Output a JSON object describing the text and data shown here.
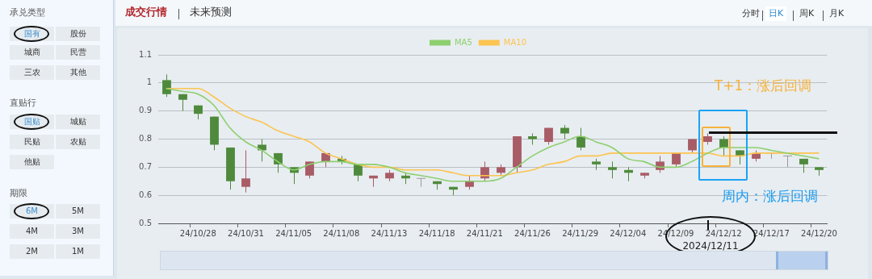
{
  "chart_data": [
    {
      "type": "candlestick",
      "categories": [
        null,
        null,
        "24/10/28",
        null,
        null,
        "24/10/31",
        null,
        null,
        "24/11/05",
        null,
        null,
        "24/11/08",
        null,
        null,
        "24/11/13",
        null,
        null,
        "24/11/18",
        null,
        null,
        "24/11/21",
        null,
        null,
        "24/11/26",
        null,
        null,
        "24/11/29",
        null,
        null,
        "24/12/04",
        null,
        null,
        "24/12/09",
        null,
        null,
        "24/12/12",
        null,
        null,
        "24/12/17",
        null,
        null,
        "24/12/20"
      ],
      "ohlc": [
        [
          1.01,
          1.03,
          0.95,
          0.96
        ],
        [
          0.96,
          0.96,
          0.9,
          0.94
        ],
        [
          0.92,
          0.92,
          0.87,
          0.89
        ],
        [
          0.88,
          0.88,
          0.76,
          0.78
        ],
        [
          0.77,
          0.77,
          0.62,
          0.65
        ],
        [
          0.63,
          0.76,
          0.61,
          0.66
        ],
        [
          0.78,
          0.8,
          0.72,
          0.76
        ],
        [
          0.75,
          0.75,
          0.68,
          0.71
        ],
        [
          0.7,
          0.7,
          0.64,
          0.68
        ],
        [
          0.67,
          0.72,
          0.66,
          0.72
        ],
        [
          0.72,
          0.75,
          0.7,
          0.75
        ],
        [
          0.73,
          0.74,
          0.71,
          0.72
        ],
        [
          0.71,
          0.71,
          0.65,
          0.67
        ],
        [
          0.66,
          0.67,
          0.63,
          0.67
        ],
        [
          0.66,
          0.69,
          0.65,
          0.68
        ],
        [
          0.67,
          0.68,
          0.64,
          0.66
        ],
        [
          0.66,
          0.66,
          0.63,
          0.66
        ],
        [
          0.65,
          0.65,
          0.62,
          0.64
        ],
        [
          0.63,
          0.63,
          0.6,
          0.62
        ],
        [
          0.63,
          0.67,
          0.62,
          0.65
        ],
        [
          0.66,
          0.72,
          0.65,
          0.7
        ],
        [
          0.68,
          0.71,
          0.67,
          0.7
        ],
        [
          0.7,
          0.81,
          0.68,
          0.81
        ],
        [
          0.81,
          0.82,
          0.78,
          0.8
        ],
        [
          0.79,
          0.84,
          0.78,
          0.84
        ],
        [
          0.84,
          0.85,
          0.8,
          0.82
        ],
        [
          0.81,
          0.84,
          0.76,
          0.77
        ],
        [
          0.72,
          0.73,
          0.69,
          0.71
        ],
        [
          0.7,
          0.72,
          0.66,
          0.69
        ],
        [
          0.69,
          0.7,
          0.65,
          0.68
        ],
        [
          0.67,
          0.68,
          0.66,
          0.68
        ],
        [
          0.69,
          0.74,
          0.68,
          0.72
        ],
        [
          0.71,
          0.75,
          0.7,
          0.75
        ],
        [
          0.76,
          0.8,
          0.75,
          0.8
        ],
        [
          0.79,
          0.82,
          0.78,
          0.81
        ],
        [
          0.8,
          0.81,
          0.74,
          0.77
        ],
        [
          0.76,
          0.76,
          0.71,
          0.74
        ],
        [
          0.73,
          0.76,
          0.72,
          0.75
        ],
        [
          0.75,
          0.75,
          0.73,
          0.75
        ],
        [
          0.74,
          0.74,
          0.7,
          0.74
        ],
        [
          0.73,
          0.73,
          0.68,
          0.71
        ],
        [
          0.7,
          0.7,
          0.67,
          0.69
        ]
      ],
      "colors": [
        "#4f8a3c",
        "#4f8a3c",
        "#4f8a3c",
        "#4f8a3c",
        "#4f8a3c",
        "#a85c66",
        "#4f8a3c",
        "#4f8a3c",
        "#4f8a3c",
        "#a85c66",
        "#a85c66",
        "#4f8a3c",
        "#4f8a3c",
        "#a85c66",
        "#a85c66",
        "#4f8a3c",
        "#999999",
        "#4f8a3c",
        "#4f8a3c",
        "#a85c66",
        "#a85c66",
        "#a85c66",
        "#a85c66",
        "#4f8a3c",
        "#a85c66",
        "#4f8a3c",
        "#4f8a3c",
        "#4f8a3c",
        "#4f8a3c",
        "#4f8a3c",
        "#a85c66",
        "#a85c66",
        "#a85c66",
        "#a85c66",
        "#a85c66",
        "#4f8a3c",
        "#4f8a3c",
        "#a85c66",
        "#999999",
        "#999999",
        "#4f8a3c",
        "#4f8a3c"
      ],
      "series": [
        {
          "type": "line",
          "name": "MA5",
          "color": "#8dcf6e",
          "values": [
            0.98,
            0.97,
            0.96,
            0.92,
            0.84,
            0.79,
            0.76,
            0.72,
            0.69,
            0.71,
            0.72,
            0.72,
            0.71,
            0.71,
            0.7,
            0.68,
            0.67,
            0.66,
            0.65,
            0.65,
            0.65,
            0.66,
            0.7,
            0.74,
            0.77,
            0.79,
            0.81,
            0.79,
            0.77,
            0.73,
            0.72,
            0.7,
            0.7,
            0.72,
            0.75,
            0.77,
            0.77,
            0.77,
            0.76,
            0.75,
            0.74,
            0.73
          ]
        },
        {
          "type": "line",
          "name": "MA10",
          "color": "#fcc450",
          "values": [
            0.98,
            0.98,
            0.98,
            0.95,
            0.91,
            0.88,
            0.86,
            0.83,
            0.81,
            0.79,
            0.75,
            0.73,
            0.71,
            0.7,
            0.7,
            0.69,
            0.69,
            0.69,
            0.68,
            0.67,
            0.67,
            0.67,
            0.68,
            0.69,
            0.71,
            0.72,
            0.74,
            0.74,
            0.75,
            0.75,
            0.75,
            0.75,
            0.75,
            0.75,
            0.75,
            0.74,
            0.74,
            0.75,
            0.75,
            0.75,
            0.75,
            0.75
          ]
        }
      ],
      "ylim": [
        0.5,
        1.1
      ],
      "yticks": [
        0.5,
        0.6,
        0.7,
        0.8,
        0.9,
        1,
        1.1
      ],
      "grid": "y",
      "legend": "top",
      "marker": "none",
      "annotations": [
        "T+1：涨后回调",
        "周内：涨后回调",
        "2024/12/11"
      ]
    },
    {
      "type": "other",
      "annotations": [
        "承兑类型",
        "国有",
        "股份",
        "城商",
        "民营",
        "三农",
        "其他",
        "直贴行",
        "国贴",
        "城贴",
        "民贴",
        "农贴",
        "他贴",
        "期限",
        "6M",
        "5M",
        "4M",
        "3M",
        "2M",
        "1M"
      ]
    },
    {
      "type": "other",
      "annotations": [
        "成交行情",
        "未来预测",
        "分时",
        "日K",
        "周K",
        "月K"
      ]
    }
  ]
}
